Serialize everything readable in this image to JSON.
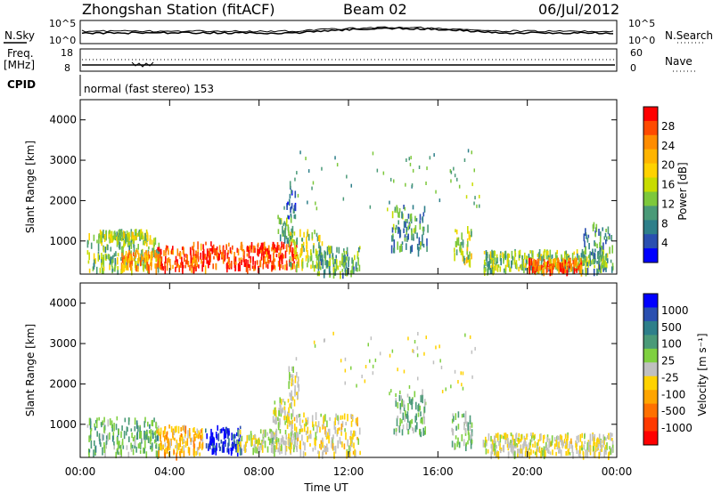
{
  "header": {
    "title": "Zhongshan Station (fitACF)",
    "beam": "Beam 02",
    "date": "06/Jul/2012"
  },
  "strips": {
    "nsky_label": "N.Sky",
    "nsky_ticks": [
      "10^5",
      "10^0"
    ],
    "nsearch_label": "N.Search",
    "nsearch_ticks": [
      "10^5",
      "10^0"
    ],
    "freq_label_1": "Freq.",
    "freq_label_2": "[MHz]",
    "freq_ticks": [
      "18",
      "8"
    ],
    "nave_label": "Nave",
    "nave_ticks": [
      "60",
      "0"
    ],
    "cpid_label": "CPID",
    "cpid_text": "normal (fast stereo) 153"
  },
  "axes": {
    "ylabel": "Slant Range [km]",
    "yticks": [
      "4000",
      "3000",
      "2000",
      "1000"
    ],
    "xticks": [
      "00:00",
      "04:00",
      "08:00",
      "12:00",
      "16:00",
      "20:00",
      "00:00"
    ],
    "xlabel": "Time UT"
  },
  "colorbars": {
    "power": {
      "label": "Power [dB]",
      "ticks": [
        "28",
        "24",
        "20",
        "16",
        "12",
        "8",
        "4"
      ],
      "colors": [
        "#ff0000",
        "#ff4a00",
        "#ff8c00",
        "#ffb400",
        "#ffd200",
        "#c8dc00",
        "#7dc83c",
        "#4a9a78",
        "#2e7f8a",
        "#2a4fb0",
        "#0000ff"
      ]
    },
    "velocity": {
      "label": "Velocity [m s⁻¹]",
      "ticks": [
        "1000",
        "500",
        "100",
        "25",
        "-25",
        "-100",
        "-500",
        "-1000"
      ],
      "colors": [
        "#0000ff",
        "#2a4fb0",
        "#2e7f8a",
        "#4a9a78",
        "#7fd040",
        "#c0c0c0",
        "#ffd200",
        "#ffa500",
        "#ff7000",
        "#ff3a00",
        "#ff0000"
      ]
    }
  },
  "chart_data": [
    {
      "type": "heatmap",
      "title": "Power",
      "xlabel": "Time UT",
      "ylabel": "Slant Range [km]",
      "xlim": [
        "00:00",
        "24:00"
      ],
      "ylim": [
        180,
        4500
      ],
      "colorbar_label": "Power [dB]",
      "colorbar_range": [
        0,
        30
      ],
      "regions": [
        {
          "t": [
            0.3,
            3.6
          ],
          "range": [
            300,
            1200
          ],
          "power": 12
        },
        {
          "t": [
            0.8,
            3.0
          ],
          "range": [
            1100,
            1300
          ],
          "power": 14
        },
        {
          "t": [
            1.8,
            3.2
          ],
          "range": [
            380,
            800
          ],
          "power": 22
        },
        {
          "t": [
            3.3,
            5.2
          ],
          "range": [
            350,
            900
          ],
          "power": 26
        },
        {
          "t": [
            5.0,
            9.7
          ],
          "range": [
            380,
            1000
          ],
          "power": 28
        },
        {
          "t": [
            8.8,
            9.5
          ],
          "range": [
            1000,
            1700
          ],
          "power": 10
        },
        {
          "t": [
            9.2,
            9.6
          ],
          "range": [
            1600,
            2500
          ],
          "power": 6
        },
        {
          "t": [
            9.3,
            10.8
          ],
          "range": [
            400,
            1300
          ],
          "power": 14
        },
        {
          "t": [
            10.5,
            12.5
          ],
          "range": [
            200,
            900
          ],
          "power": 10
        },
        {
          "t": [
            13.9,
            15.6
          ],
          "range": [
            800,
            1900
          ],
          "power": 8
        },
        {
          "t": [
            16.7,
            17.5
          ],
          "range": [
            500,
            1400
          ],
          "power": 14
        },
        {
          "t": [
            18.0,
            23.6
          ],
          "range": [
            300,
            800
          ],
          "power": 12
        },
        {
          "t": [
            20.0,
            22.4
          ],
          "range": [
            300,
            600
          ],
          "power": 26
        },
        {
          "t": [
            22.5,
            23.8
          ],
          "range": [
            300,
            1500
          ],
          "power": 8
        }
      ]
    },
    {
      "type": "heatmap",
      "title": "Velocity",
      "xlabel": "Time UT",
      "ylabel": "Slant Range [km]",
      "xlim": [
        "00:00",
        "24:00"
      ],
      "ylim": [
        180,
        4500
      ],
      "colorbar_label": "Velocity [m s⁻¹]",
      "colorbar_range": [
        -1000,
        1000
      ],
      "regions": [
        {
          "t": [
            0.3,
            3.5
          ],
          "range": [
            300,
            1200
          ],
          "velocity": 300
        },
        {
          "t": [
            3.4,
            5.5
          ],
          "range": [
            300,
            1000
          ],
          "velocity": -300
        },
        {
          "t": [
            5.5,
            7.2
          ],
          "range": [
            400,
            1000
          ],
          "velocity": 900
        },
        {
          "t": [
            7.0,
            9.7
          ],
          "range": [
            400,
            900
          ],
          "velocity": 80
        },
        {
          "t": [
            8.6,
            9.5
          ],
          "range": [
            1000,
            1700
          ],
          "velocity": 0
        },
        {
          "t": [
            9.3,
            9.8
          ],
          "range": [
            1600,
            2500
          ],
          "velocity": -80
        },
        {
          "t": [
            9.3,
            12.5
          ],
          "range": [
            300,
            1300
          ],
          "velocity": -100
        },
        {
          "t": [
            14.0,
            15.5
          ],
          "range": [
            800,
            1900
          ],
          "velocity": 250
        },
        {
          "t": [
            16.6,
            17.5
          ],
          "range": [
            500,
            1400
          ],
          "velocity": 150
        },
        {
          "t": [
            18.0,
            23.8
          ],
          "range": [
            300,
            800
          ],
          "velocity": -60
        }
      ]
    }
  ]
}
